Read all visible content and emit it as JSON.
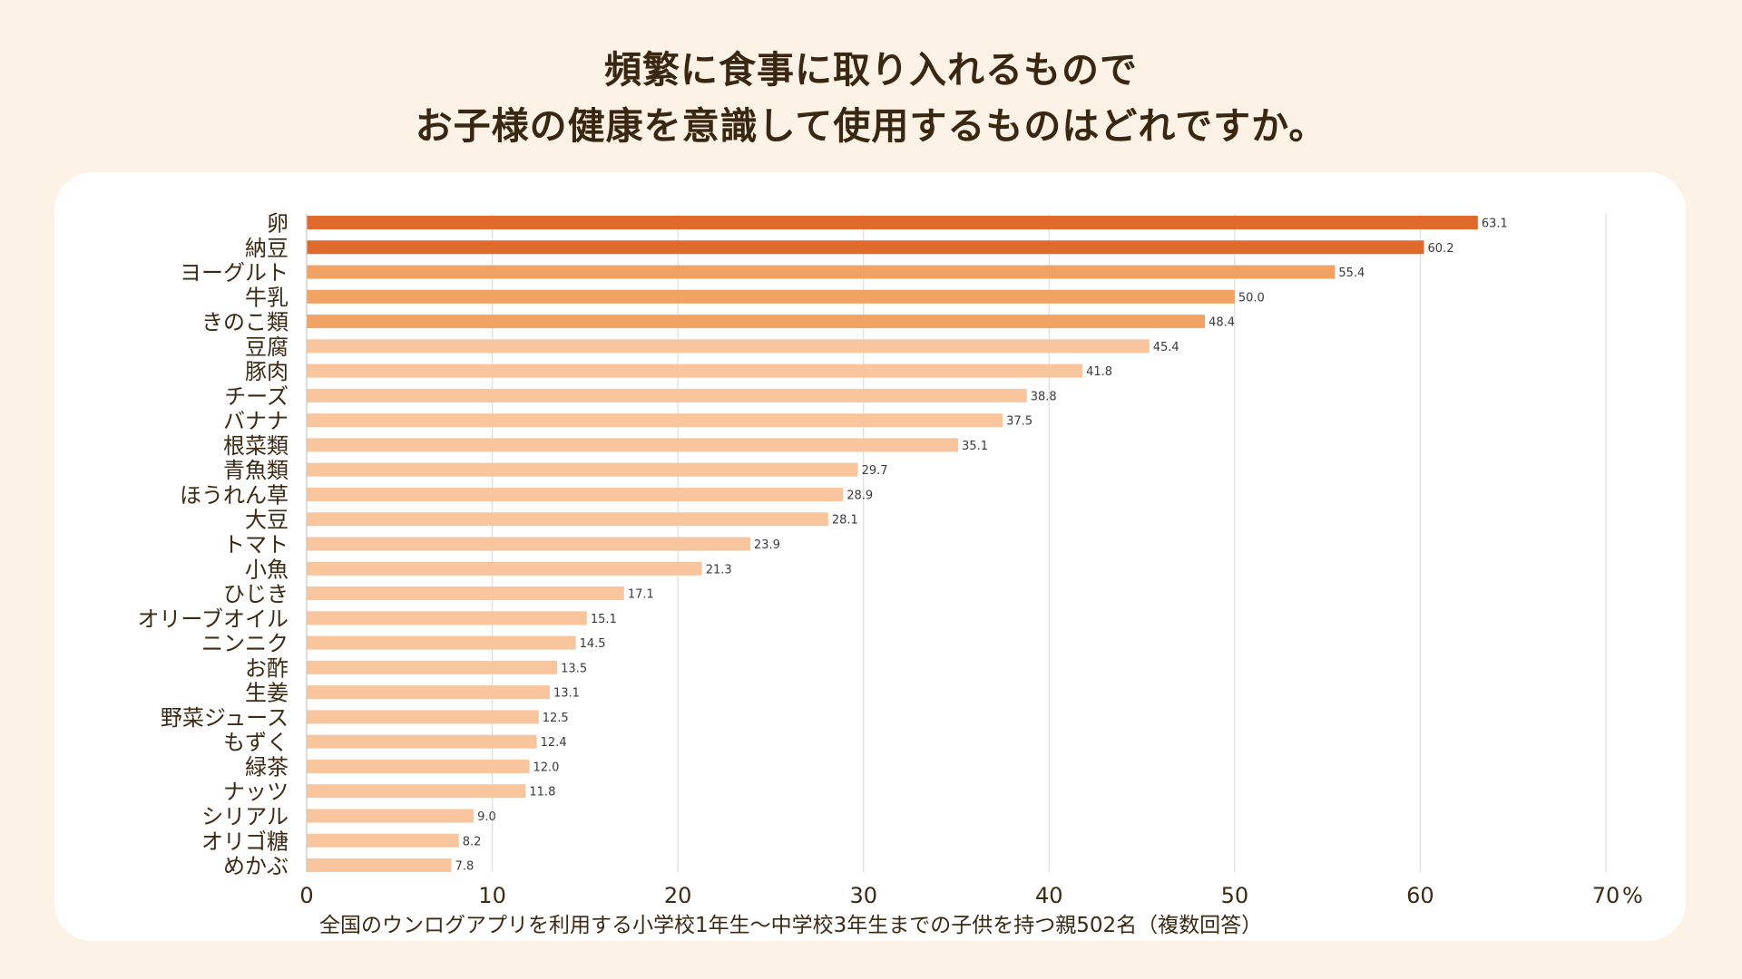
{
  "title": {
    "line1": "頻繁に食事に取り入れるもので",
    "line2": "お子様の健康を意識して使用するものはどれですか。"
  },
  "colors": {
    "background": "#FDF2E6",
    "card": "#FFFFFF",
    "top_tier": "#E06A2E",
    "mid_tier": "#F2A262",
    "low_tier": "#F8C59C",
    "gridline": "#E0E0E0",
    "text": "#3B2A14"
  },
  "chart_data": {
    "type": "bar",
    "orientation": "horizontal",
    "title": "頻繁に食事に取り入れるもので お子様の健康を意識して使用するものはどれですか。",
    "categories": [
      "卵",
      "納豆",
      "ヨーグルト",
      "牛乳",
      "きのこ類",
      "豆腐",
      "豚肉",
      "チーズ",
      "バナナ",
      "根菜類",
      "青魚類",
      "ほうれん草",
      "大豆",
      "トマト",
      "小魚",
      "ひじき",
      "オリーブオイル",
      "ニンニク",
      "お酢",
      "生姜",
      "野菜ジュース",
      "もずく",
      "緑茶",
      "ナッツ",
      "シリアル",
      "オリゴ糖",
      "めかぶ"
    ],
    "values": [
      63.1,
      60.2,
      55.4,
      50.0,
      48.4,
      45.4,
      41.8,
      38.8,
      37.5,
      35.1,
      29.7,
      28.9,
      28.1,
      23.9,
      21.3,
      17.1,
      15.1,
      14.5,
      13.5,
      13.1,
      12.5,
      12.4,
      12.0,
      11.8,
      9.0,
      8.2,
      7.8
    ],
    "value_labels": [
      "63.1",
      "60.2",
      "55.4",
      "50.0",
      "48.4",
      "45.4",
      "41.8",
      "38.8",
      "37.5",
      "35.1",
      "29.7",
      "28.9",
      "28.1",
      "23.9",
      "21.3",
      "17.1",
      "15.1",
      "14.5",
      "13.5",
      "13.1",
      "12.5",
      "12.4",
      "12.0",
      "11.8",
      "9.0",
      "8.2",
      "7.8"
    ],
    "tiers": [
      "top",
      "top",
      "mid",
      "mid",
      "mid",
      "low",
      "low",
      "low",
      "low",
      "low",
      "low",
      "low",
      "low",
      "low",
      "low",
      "low",
      "low",
      "low",
      "low",
      "low",
      "low",
      "low",
      "low",
      "low",
      "low",
      "low",
      "low"
    ],
    "xlim": [
      0,
      70
    ],
    "xticks": [
      0,
      10,
      20,
      30,
      40,
      50,
      60,
      70
    ],
    "xtick_labels": [
      "0",
      "10",
      "20",
      "30",
      "40",
      "50",
      "60",
      "70"
    ],
    "x_unit": "%",
    "xlabel": "全国のウンログアプリを利用する小学校1年生〜中学校3年生までの子供を持つ親502名（複数回答）",
    "ylabel": "",
    "grid": true,
    "legend": "none"
  }
}
